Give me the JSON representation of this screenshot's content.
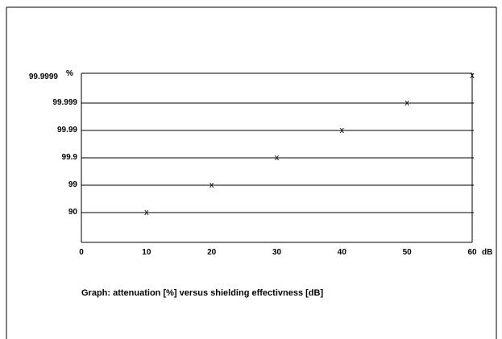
{
  "chart_data": {
    "type": "scatter",
    "title": "",
    "caption": "Graph: attenuation [%] versus shielding effectivness [dB]",
    "x_unit": "dB",
    "y_unit": "%",
    "x_ticks": [
      "0",
      "10",
      "20",
      "30",
      "40",
      "50",
      "60"
    ],
    "x_range": [
      0,
      60
    ],
    "y_categories": [
      "90",
      "99",
      "99.9",
      "99.99",
      "99.999",
      "99.9999"
    ],
    "y_tick_labels": [
      "90",
      "99",
      "99.9",
      "99.99",
      "99.999",
      "99.9999"
    ],
    "grid": "horizontal",
    "marker": "x",
    "points": [
      {
        "x": 10,
        "y": "90"
      },
      {
        "x": 20,
        "y": "99"
      },
      {
        "x": 30,
        "y": "99.9"
      },
      {
        "x": 40,
        "y": "99.99"
      },
      {
        "x": 50,
        "y": "99.999"
      },
      {
        "x": 60,
        "y": "99.9999"
      }
    ]
  }
}
